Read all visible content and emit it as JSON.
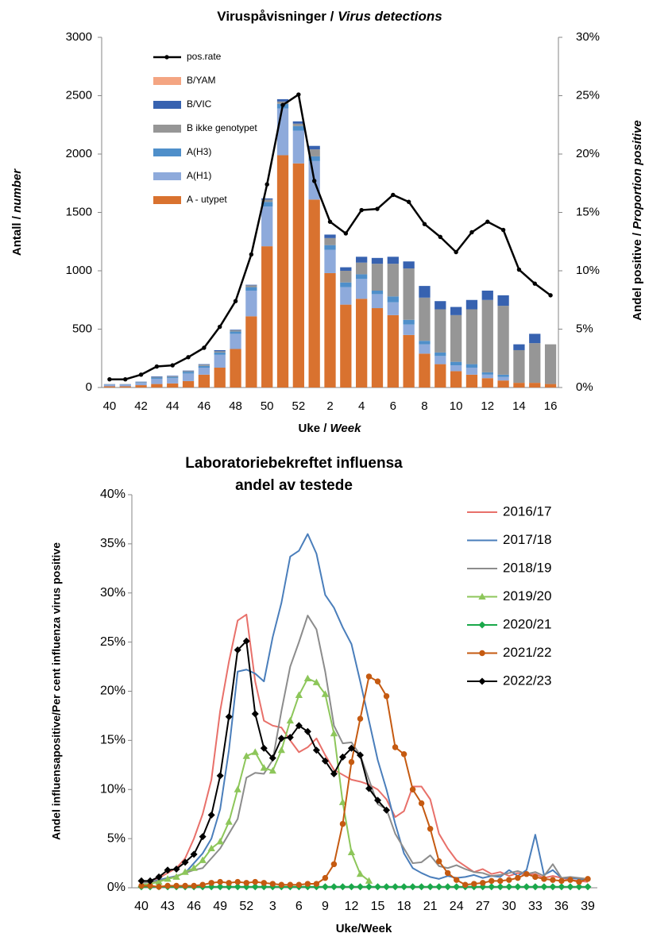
{
  "chart_data": [
    {
      "type": "bar",
      "stacked": true,
      "title": [
        "Viruspåvisninger / ",
        "Virus detections"
      ],
      "x_label": [
        "Uke / ",
        "Week"
      ],
      "y_label": [
        "Antall / ",
        "number"
      ],
      "y2_label": [
        "Andel positive / ",
        "Proportion positive"
      ],
      "categories": [
        40,
        null,
        42,
        null,
        44,
        null,
        46,
        null,
        48,
        null,
        50,
        null,
        52,
        null,
        2,
        null,
        4,
        null,
        6,
        null,
        8,
        null,
        10,
        null,
        12,
        null,
        14,
        null,
        16
      ],
      "ylim": [
        0,
        3000
      ],
      "yticks": [
        0,
        500,
        1000,
        1500,
        2000,
        2500,
        3000
      ],
      "y2lim": [
        0,
        30
      ],
      "y2ticks": [
        {
          "value": 0,
          "label": "0%"
        },
        {
          "value": 5,
          "label": "5%"
        },
        {
          "value": 10,
          "label": "10%"
        },
        {
          "value": 15,
          "label": "15%"
        },
        {
          "value": 20,
          "label": "20%"
        },
        {
          "value": 25,
          "label": "25%"
        },
        {
          "value": 30,
          "label": "30%"
        }
      ],
      "legend": "upper left",
      "series": [
        {
          "name": "A - utypet",
          "color": "#d9722f",
          "values": [
            10,
            10,
            20,
            30,
            35,
            55,
            110,
            170,
            330,
            610,
            1210,
            1990,
            1920,
            1610,
            980,
            710,
            760,
            680,
            620,
            450,
            290,
            200,
            140,
            110,
            80,
            60,
            40,
            40,
            30
          ]
        },
        {
          "name": "A(H1)",
          "color": "#8eaadb",
          "values": [
            15,
            15,
            20,
            45,
            45,
            65,
            60,
            110,
            130,
            220,
            340,
            400,
            280,
            330,
            200,
            150,
            170,
            120,
            110,
            90,
            80,
            70,
            50,
            60,
            30,
            30,
            0,
            0,
            0
          ]
        },
        {
          "name": "A(H3)",
          "color": "#4f8fca",
          "values": [
            3,
            3,
            5,
            10,
            10,
            15,
            15,
            20,
            20,
            30,
            40,
            40,
            40,
            40,
            40,
            40,
            40,
            30,
            50,
            40,
            30,
            30,
            30,
            30,
            20,
            20,
            0,
            0,
            0
          ]
        },
        {
          "name": "B ikke genotypet",
          "color": "#969696",
          "values": [
            2,
            2,
            3,
            5,
            5,
            5,
            10,
            10,
            10,
            15,
            20,
            20,
            20,
            60,
            60,
            100,
            100,
            230,
            280,
            440,
            370,
            370,
            400,
            470,
            620,
            590,
            280,
            340,
            340
          ]
        },
        {
          "name": "B/VIC",
          "color": "#3762b0",
          "values": [
            0,
            0,
            2,
            5,
            5,
            5,
            5,
            10,
            5,
            5,
            10,
            20,
            20,
            30,
            30,
            30,
            50,
            50,
            60,
            60,
            100,
            70,
            70,
            80,
            80,
            90,
            50,
            80,
            0
          ]
        },
        {
          "name": "B/YAM",
          "color": "#f4a582",
          "values": [
            0,
            0,
            0,
            0,
            0,
            0,
            0,
            0,
            0,
            0,
            0,
            0,
            0,
            0,
            0,
            0,
            0,
            0,
            0,
            0,
            0,
            0,
            0,
            0,
            0,
            0,
            0,
            0,
            0
          ]
        },
        {
          "name": "pos.rate",
          "color": "#000000",
          "type": "line",
          "axis": "y2",
          "values": [
            0.7,
            0.7,
            1.1,
            1.8,
            1.9,
            2.6,
            3.4,
            5.2,
            7.4,
            11.4,
            17.4,
            24.2,
            25.1,
            17.7,
            14.2,
            13.2,
            15.2,
            15.3,
            16.5,
            15.9,
            14.0,
            12.9,
            11.6,
            13.3,
            14.2,
            13.5,
            10.1,
            8.9,
            7.9
          ]
        }
      ]
    },
    {
      "type": "line",
      "title": [
        "Laboratoriebekreftet influensa",
        "andel av testede"
      ],
      "x_label": "Uke/Week",
      "y_label": "Andel influensapositive/Per cent influenza virus positive",
      "categories": [
        40,
        null,
        null,
        43,
        null,
        null,
        46,
        null,
        null,
        49,
        null,
        null,
        52,
        null,
        null,
        3,
        null,
        null,
        6,
        null,
        null,
        9,
        null,
        null,
        12,
        null,
        null,
        15,
        null,
        null,
        18,
        null,
        null,
        21,
        null,
        null,
        24,
        null,
        null,
        27,
        null,
        null,
        30,
        null,
        null,
        33,
        null,
        null,
        36,
        null,
        null,
        39
      ],
      "ylim": [
        0,
        40
      ],
      "yticks": [
        {
          "value": 0,
          "label": "0%"
        },
        {
          "value": 5,
          "label": "5%"
        },
        {
          "value": 10,
          "label": "10%"
        },
        {
          "value": 15,
          "label": "15%"
        },
        {
          "value": 20,
          "label": "20%"
        },
        {
          "value": 25,
          "label": "25%"
        },
        {
          "value": 30,
          "label": "30%"
        },
        {
          "value": 35,
          "label": "35%"
        },
        {
          "value": 40,
          "label": "40%"
        }
      ],
      "legend": "right",
      "series": [
        {
          "name": "2016/17",
          "color": "#e8706a",
          "marker": null,
          "values": [
            0.5,
            0.7,
            1,
            1.5,
            2,
            3,
            5,
            7.5,
            11,
            18,
            23,
            27.2,
            27.8,
            21,
            17,
            16.5,
            16.3,
            15,
            13.8,
            14.3,
            15.2,
            13.5,
            12,
            11.5,
            11,
            10.8,
            10.5,
            10,
            9,
            7.2,
            7.8,
            10.3,
            10.3,
            9,
            5.5,
            4,
            2.8,
            2.2,
            1.6,
            1.9,
            1.4,
            1.6,
            1.2,
            1.5,
            1.3,
            1.4,
            1,
            1.2,
            1,
            0.8,
            0.7,
            0.6
          ]
        },
        {
          "name": "2017/18",
          "color": "#4a7ebb",
          "marker": null,
          "values": [
            0.5,
            0.6,
            0.8,
            1,
            1.2,
            1.5,
            2.5,
            3.5,
            5,
            8,
            14,
            22,
            22.2,
            21.8,
            21,
            25.5,
            29,
            33.7,
            34.3,
            36,
            34,
            29.8,
            28.5,
            26.5,
            24.8,
            21,
            17,
            13,
            10,
            6.5,
            3.5,
            2,
            1.5,
            1.1,
            0.9,
            1.2,
            1,
            1.1,
            1.3,
            1,
            1.2,
            1.1,
            1.8,
            1.2,
            1.8,
            5.4,
            1.3,
            1.8,
            1,
            1,
            0.9,
            0.8
          ]
        },
        {
          "name": "2018/19",
          "color": "#8c8c8c",
          "marker": null,
          "values": [
            0.5,
            0.6,
            0.7,
            0.9,
            1.2,
            1.5,
            1.8,
            2,
            3,
            4,
            5.5,
            7,
            11.2,
            11.7,
            11.6,
            13,
            18,
            22.5,
            25,
            27.7,
            26.3,
            22,
            16.5,
            14.7,
            14.8,
            13.5,
            11,
            8.5,
            8,
            5.5,
            4,
            2.5,
            2.6,
            3.3,
            2.2,
            2,
            2.3,
            1.9,
            1.6,
            1.5,
            1.2,
            1.3,
            1.5,
            1.7,
            1.4,
            1.6,
            1.2,
            2.4,
            1,
            1.1,
            1,
            0.9
          ]
        },
        {
          "name": "2019/20",
          "color": "#8dc65a",
          "marker": "triangle",
          "values": [
            0.3,
            0.4,
            0.6,
            0.9,
            1.1,
            1.6,
            2,
            2.8,
            4,
            4.7,
            6.7,
            10,
            13.4,
            13.8,
            12.2,
            11.9,
            14,
            17,
            19.6,
            21.3,
            20.9,
            19.7,
            15.7,
            8.7,
            3.6,
            1.4,
            0.7,
            null,
            null,
            null,
            null,
            null,
            null,
            null,
            null,
            null,
            null,
            null,
            null,
            null,
            null,
            null,
            null,
            null,
            null,
            null,
            null,
            null,
            null,
            null,
            null,
            null
          ]
        },
        {
          "name": "2020/21",
          "color": "#1aa84a",
          "marker": "diamond",
          "values": [
            0.1,
            0.1,
            0.1,
            0.1,
            0.1,
            0.1,
            0.1,
            0.1,
            0.1,
            0.1,
            0.1,
            0.1,
            0.1,
            0.1,
            0.1,
            0.1,
            0.1,
            0.1,
            0.1,
            0.1,
            0.1,
            0.1,
            0.1,
            0.1,
            0.1,
            0.1,
            0.1,
            0.1,
            0.1,
            0.1,
            0.1,
            0.1,
            0.1,
            0.1,
            0.1,
            0.1,
            0.1,
            0.1,
            0.1,
            0.1,
            0.1,
            0.1,
            0.1,
            0.1,
            0.1,
            0.1,
            0.1,
            0.1,
            0.1,
            0.1,
            0.1,
            0.1
          ]
        },
        {
          "name": "2021/22",
          "color": "#c55a11",
          "marker": "circle",
          "values": [
            0.2,
            0.2,
            0.1,
            0.2,
            0.2,
            0.2,
            0.2,
            0.3,
            0.5,
            0.6,
            0.5,
            0.6,
            0.5,
            0.6,
            0.5,
            0.4,
            0.3,
            0.3,
            0.3,
            0.4,
            0.4,
            1,
            2.4,
            6.5,
            12.8,
            17.2,
            21.5,
            21,
            19.5,
            14.3,
            13.6,
            10,
            8.6,
            6,
            2.7,
            1.5,
            0.8,
            0.3,
            0.4,
            0.5,
            0.7,
            0.7,
            0.8,
            1,
            1.4,
            1.1,
            0.9,
            0.8,
            0.7,
            0.8,
            0.6,
            0.9
          ]
        },
        {
          "name": "2022/23",
          "color": "#000000",
          "marker": "diamond",
          "values": [
            0.7,
            0.7,
            1.1,
            1.8,
            1.9,
            2.6,
            3.4,
            5.2,
            7.4,
            11.4,
            17.4,
            24.2,
            25.1,
            17.7,
            14.2,
            13.2,
            15.2,
            15.3,
            16.5,
            15.9,
            14.0,
            12.9,
            11.6,
            13.3,
            14.2,
            13.5,
            10.1,
            8.9,
            7.9,
            null,
            null,
            null,
            null,
            null,
            null,
            null,
            null,
            null,
            null,
            null,
            null,
            null,
            null,
            null,
            null,
            null,
            null,
            null,
            null,
            null,
            null,
            null
          ]
        }
      ]
    }
  ]
}
